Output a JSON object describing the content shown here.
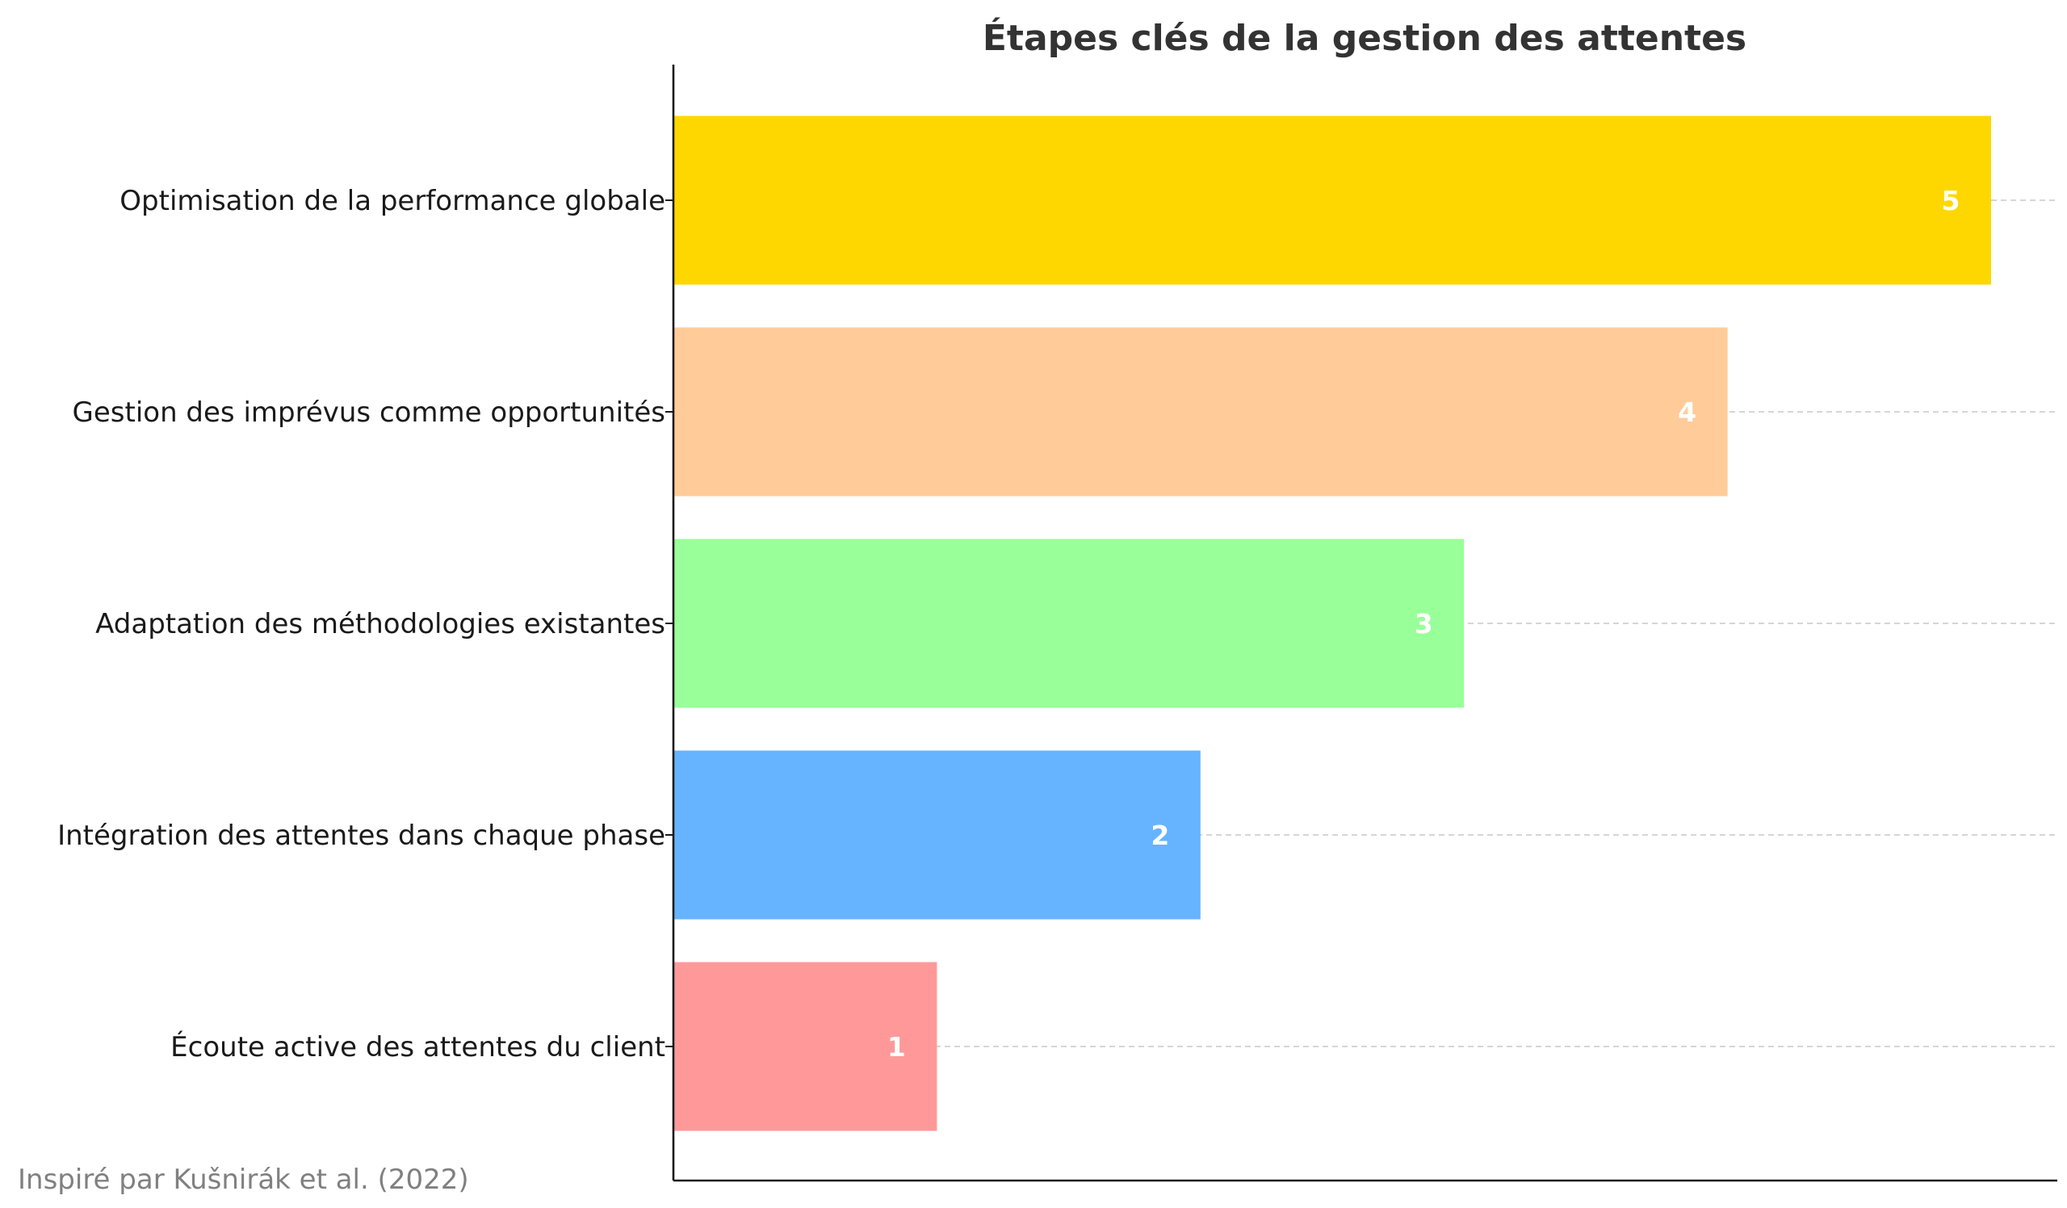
{
  "chart_data": {
    "type": "bar",
    "orientation": "horizontal",
    "title": "Étapes clés de la gestion des attentes",
    "xlabel": "",
    "ylabel": "",
    "categories": [
      "Écoute active des attentes du client",
      "Intégration des attentes dans chaque phase",
      "Adaptation des méthodologies existantes",
      "Gestion des imprévus comme opportunités",
      "Optimisation de la performance globale"
    ],
    "values": [
      1,
      2,
      3,
      4,
      5
    ],
    "data_labels": [
      "1",
      "2",
      "3",
      "4",
      "5"
    ],
    "colors": [
      "#ff9999",
      "#66b3ff",
      "#99ff99",
      "#ffcc99",
      "#ffd700"
    ],
    "xlim": [
      0,
      5.25
    ],
    "grid": "y-dashed",
    "legend": "none",
    "source_note": "Inspiré par Kušnirák et al. (2022)"
  }
}
